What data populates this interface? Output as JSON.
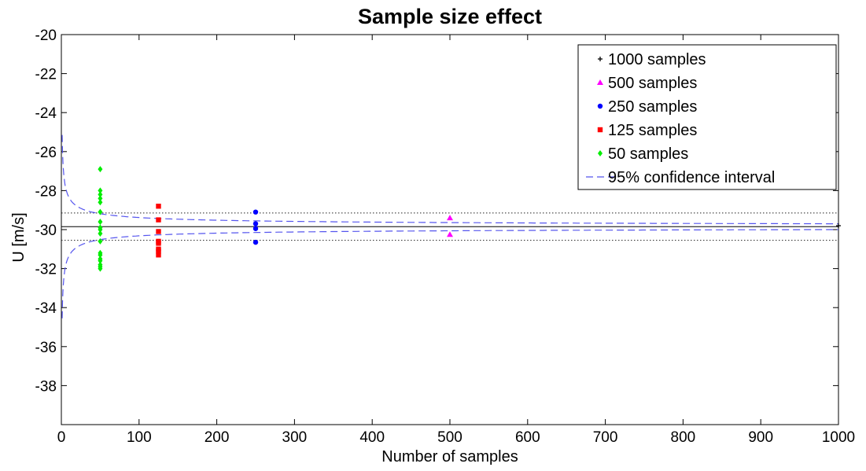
{
  "chart_data": {
    "type": "scatter",
    "title": "Sample size effect",
    "xlabel": "Number of samples",
    "ylabel": "U [m/s]",
    "xlim": [
      0,
      1000
    ],
    "ylim": [
      -40,
      -20
    ],
    "xticks": [
      0,
      100,
      200,
      300,
      400,
      500,
      600,
      700,
      800,
      900,
      1000
    ],
    "yticks": [
      -20,
      -22,
      -24,
      -26,
      -28,
      -30,
      -32,
      -34,
      -36,
      -38
    ],
    "grid": false,
    "legend_position": "top-right",
    "mean": -29.85,
    "reference_lines": [
      -29.15,
      -30.55
    ],
    "series": [
      {
        "name": "1000 samples",
        "marker": "plus",
        "color": "#000000",
        "x": [
          1000
        ],
        "y": [
          -29.8
        ]
      },
      {
        "name": "500 samples",
        "marker": "triangle",
        "color": "#ff00ff",
        "x": [
          500,
          500
        ],
        "y": [
          -29.4,
          -30.25
        ]
      },
      {
        "name": "250 samples",
        "marker": "circle",
        "color": "#0000ff",
        "x": [
          250,
          250,
          250,
          250
        ],
        "y": [
          -29.1,
          -29.7,
          -29.95,
          -30.65
        ]
      },
      {
        "name": "125 samples",
        "marker": "square",
        "color": "#ff0000",
        "x": [
          125,
          125,
          125,
          125,
          125,
          125,
          125,
          125
        ],
        "y": [
          -28.8,
          -29.5,
          -30.1,
          -30.6,
          -30.7,
          -31.0,
          -31.1,
          -31.3
        ]
      },
      {
        "name": "50 samples",
        "marker": "diamond",
        "color": "#00ee00",
        "x": [
          50,
          50,
          50,
          50,
          50,
          50,
          50,
          50,
          50,
          50,
          50,
          50,
          50,
          50,
          50,
          50,
          50,
          50
        ],
        "y": [
          -26.9,
          -28.0,
          -28.2,
          -28.4,
          -28.6,
          -29.1,
          -29.6,
          -29.9,
          -30.0,
          -30.2,
          -30.6,
          -31.2,
          -31.3,
          -31.5,
          -31.6,
          -31.8,
          -31.9,
          -32.0
        ]
      },
      {
        "name": "95% confidence interval",
        "marker": "dashed-line",
        "color": "#5555ee",
        "k": 4.7
      }
    ]
  }
}
